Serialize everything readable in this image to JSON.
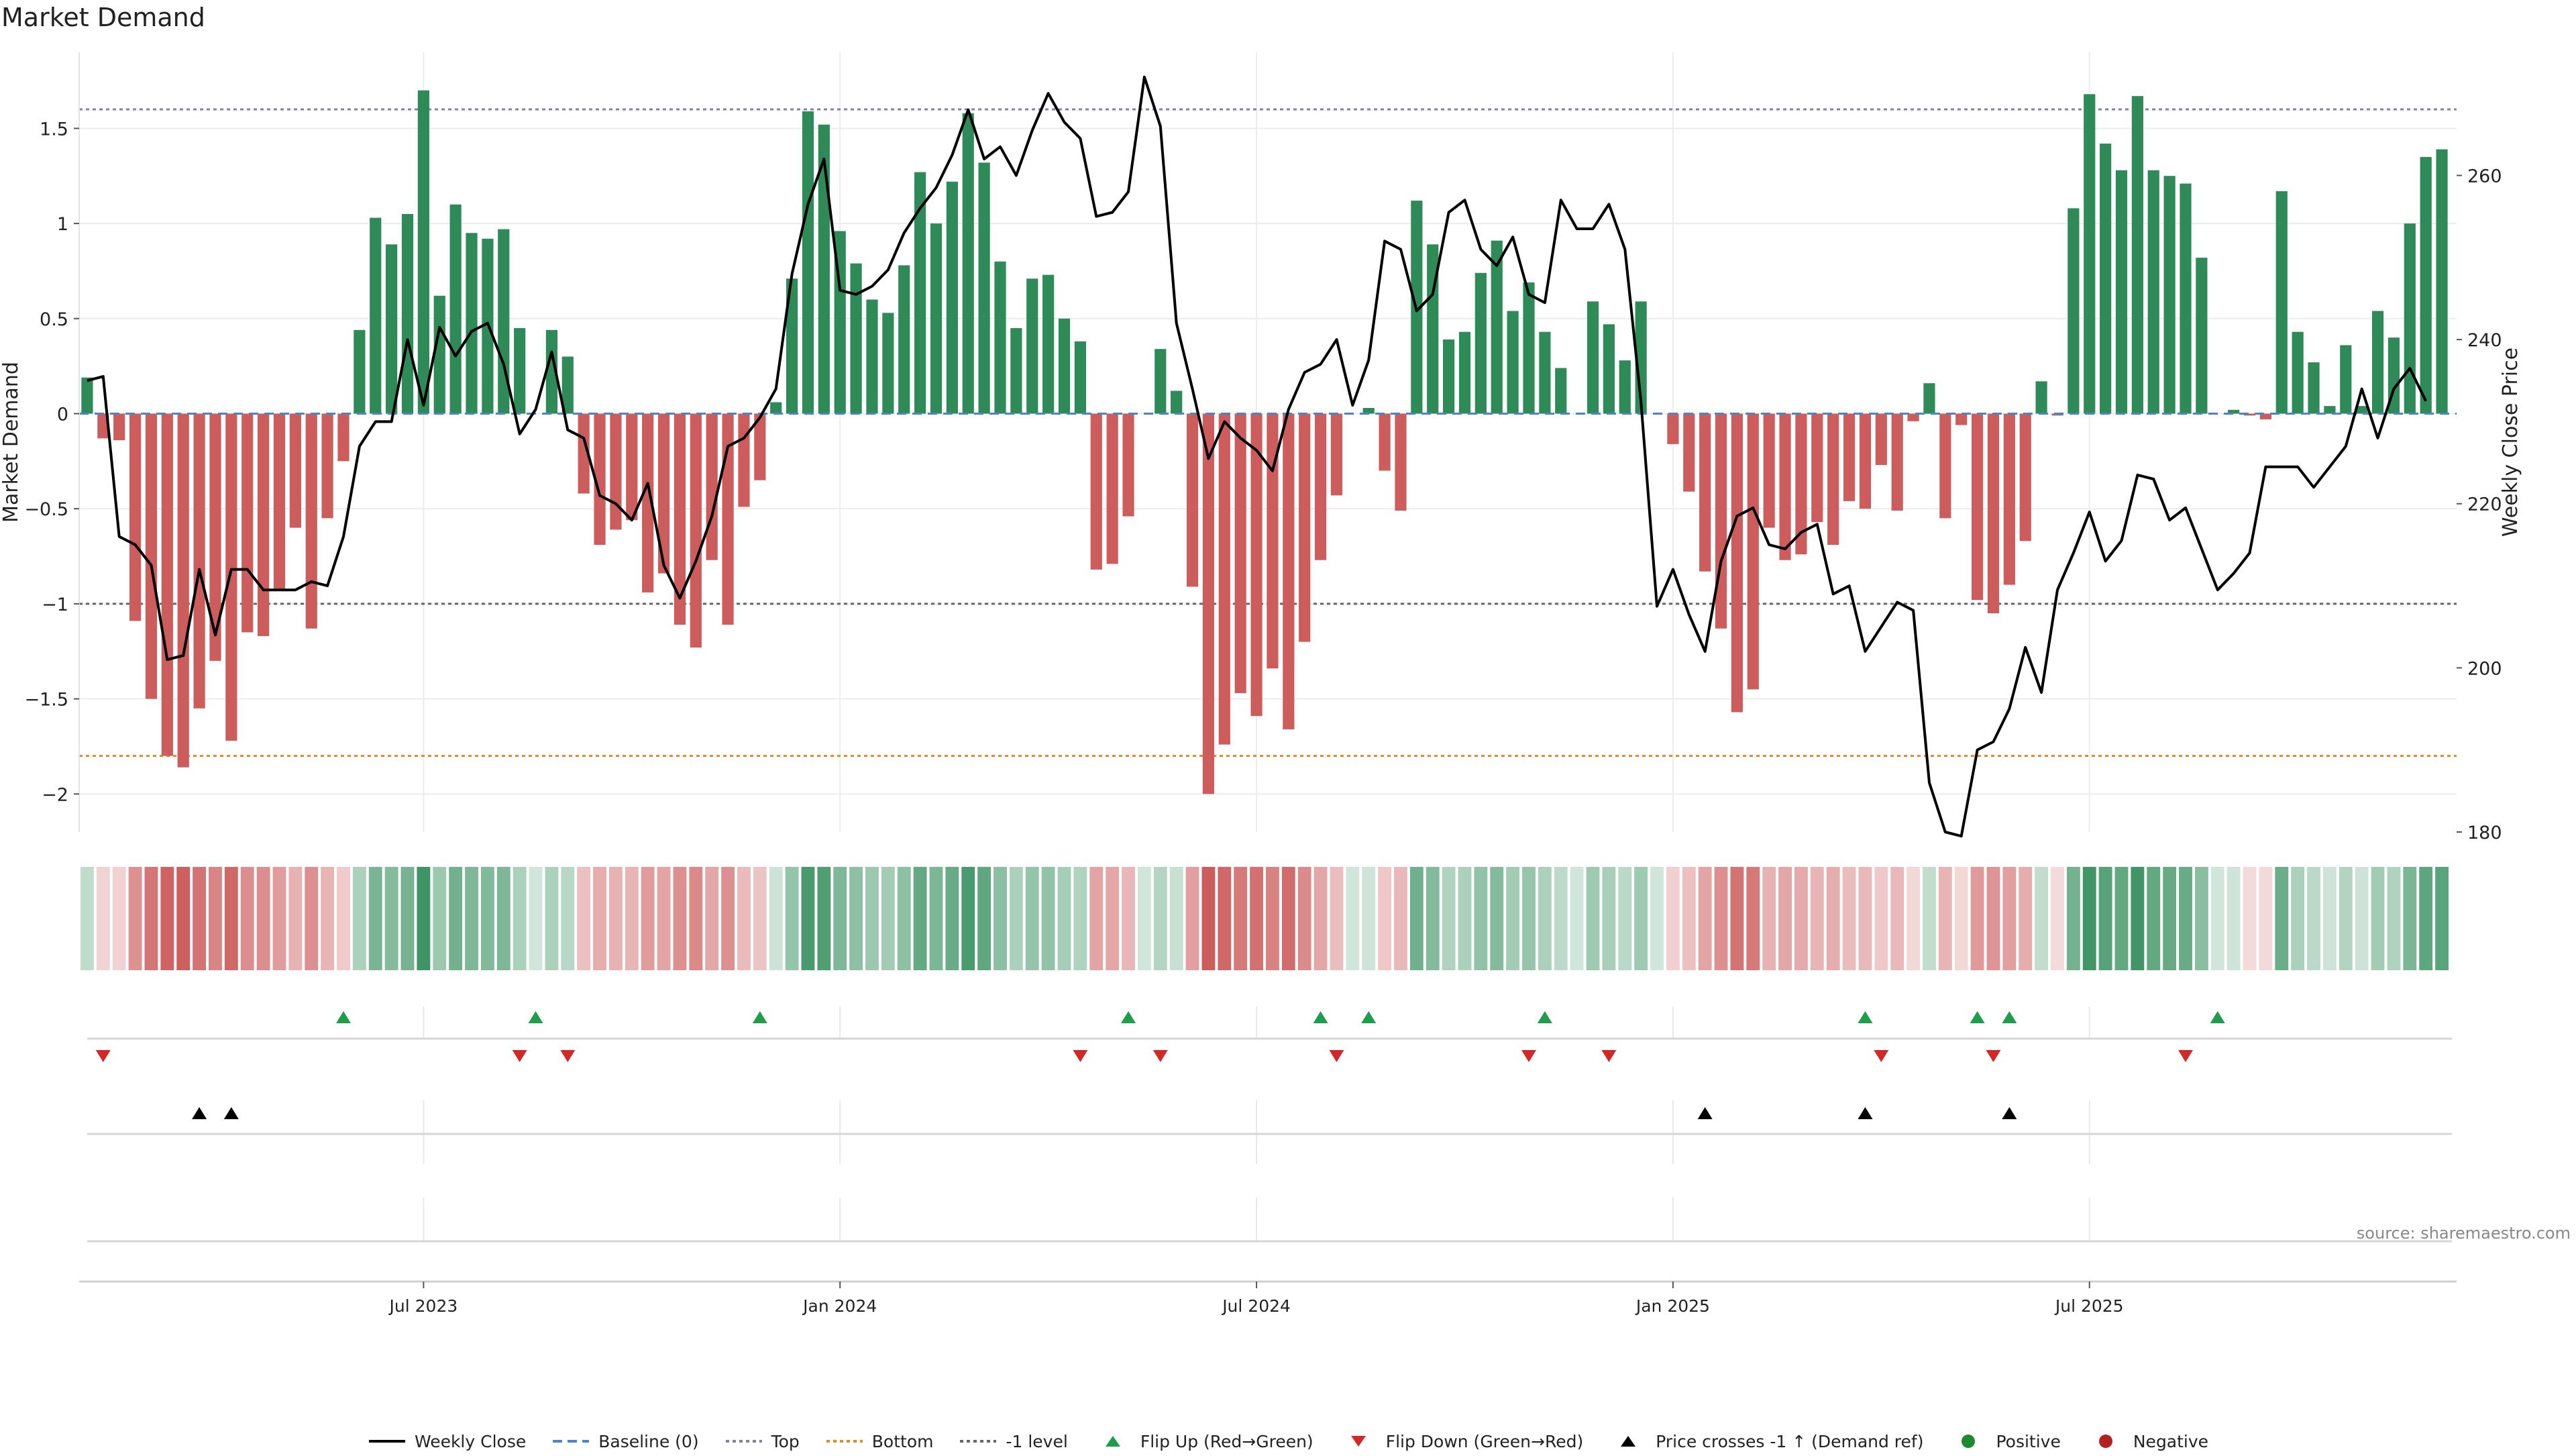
{
  "title": "Market Demand",
  "source": "source: sharemaestro.com",
  "colors": {
    "positive": "#2e8b57",
    "negative": "#cd5c5c",
    "price": "#000000",
    "baseline": "#4a86c5",
    "top": "#8a7fa0",
    "bottom": "#e08a2b",
    "minus1": "#666666",
    "flip_up": "#1e9e4a",
    "flip_down": "#d62728",
    "cross": "#000000",
    "dot_positive": "#1e8a2e",
    "dot_negative": "#b22222"
  },
  "legend": [
    {
      "key": "price",
      "label": "Weekly Close"
    },
    {
      "key": "baseline",
      "label": "Baseline (0)"
    },
    {
      "key": "top",
      "label": "Top"
    },
    {
      "key": "bottom",
      "label": "Bottom"
    },
    {
      "key": "minus1",
      "label": "-1 level"
    },
    {
      "key": "flip_up",
      "label": "Flip Up (Red→Green)"
    },
    {
      "key": "flip_down",
      "label": "Flip Down (Green→Red)"
    },
    {
      "key": "cross",
      "label": "Price crosses -1 ↑ (Demand ref)"
    },
    {
      "key": "dot_positive",
      "label": "Positive"
    },
    {
      "key": "dot_negative",
      "label": "Negative"
    }
  ],
  "chart_data": {
    "type": "bar",
    "ylabel": "Market Demand",
    "y2label": "Weekly Close Price",
    "ylim": [
      -2.2,
      1.9
    ],
    "y_ticks": [
      1.5,
      1,
      0.5,
      0,
      -0.5,
      -1,
      -1.5,
      -2
    ],
    "y_tick_labels": [
      "1.5",
      "1",
      "0.5",
      "0",
      "−0.5",
      "−1",
      "−1.5",
      "−2"
    ],
    "y2lim": [
      180,
      275
    ],
    "y2_ticks": [
      180,
      200,
      220,
      240,
      260
    ],
    "reference_lines": {
      "top": 1.6,
      "bottom": -1.8,
      "minus1": -1.0,
      "baseline": 0
    },
    "x_tick_labels": [
      "Jul 2023",
      "Jan 2024",
      "Jul 2024",
      "Jan 2025",
      "Jul 2025"
    ],
    "x_tick_weeks": [
      21.5,
      47.5,
      73.5,
      99.5,
      125.5
    ],
    "demand": [
      0.19,
      -0.13,
      -0.14,
      -1.09,
      -1.5,
      -1.8,
      -1.86,
      -1.55,
      -1.3,
      -1.72,
      -1.15,
      -1.17,
      -0.93,
      -0.6,
      -1.13,
      -0.55,
      -0.25,
      0.44,
      1.03,
      0.89,
      1.05,
      1.7,
      0.62,
      1.1,
      0.95,
      0.92,
      0.97,
      0.45,
      0.0,
      0.44,
      0.3,
      -0.42,
      -0.69,
      -0.61,
      -0.56,
      -0.94,
      -0.84,
      -1.11,
      -1.23,
      -0.77,
      -1.11,
      -0.49,
      -0.35,
      0.06,
      0.71,
      1.59,
      1.52,
      0.96,
      0.79,
      0.6,
      0.53,
      0.78,
      1.27,
      1.0,
      1.22,
      1.58,
      1.32,
      0.8,
      0.45,
      0.71,
      0.73,
      0.5,
      0.38,
      -0.82,
      -0.79,
      -0.54,
      0.0,
      0.34,
      0.12,
      -0.91,
      -2.0,
      -1.74,
      -1.47,
      -1.59,
      -1.34,
      -1.66,
      -1.2,
      -0.77,
      -0.43,
      0.0,
      0.03,
      -0.3,
      -0.51,
      1.12,
      0.89,
      0.39,
      0.43,
      0.74,
      0.91,
      0.54,
      0.69,
      0.43,
      0.24,
      0.0,
      0.59,
      0.47,
      0.28,
      0.59,
      0.0,
      -0.16,
      -0.41,
      -0.83,
      -1.13,
      -1.57,
      -1.45,
      -0.6,
      -0.77,
      -0.74,
      -0.57,
      -0.69,
      -0.46,
      -0.5,
      -0.27,
      -0.51,
      -0.04,
      0.16,
      -0.55,
      -0.06,
      -0.98,
      -1.05,
      -0.9,
      -0.67,
      0.17,
      -0.01,
      1.08,
      1.68,
      1.42,
      1.28,
      1.67,
      1.28,
      1.25,
      1.21,
      0.82,
      0.0,
      0.02,
      -0.01,
      -0.03,
      1.17,
      0.43,
      0.27,
      0.04,
      0.36,
      0.04,
      0.54,
      0.4,
      1.0,
      1.35,
      1.39
    ],
    "price": [
      235,
      235.5,
      216,
      215,
      212.5,
      201,
      201.5,
      212,
      204,
      212,
      212,
      209.5,
      209.5,
      209.5,
      210.5,
      210,
      216,
      227,
      230,
      230,
      240,
      232,
      241.5,
      238,
      241,
      242,
      237,
      228.5,
      231.5,
      238.5,
      229,
      228,
      221,
      220,
      218,
      222.5,
      212.5,
      208.5,
      213,
      218.5,
      227,
      228,
      230.5,
      234,
      248,
      256.5,
      262,
      246,
      245.5,
      246.5,
      248.5,
      253,
      256,
      258.5,
      262.5,
      268,
      262,
      263.5,
      260,
      265.5,
      270,
      266.5,
      264.5,
      255,
      255.5,
      258,
      272,
      266,
      242,
      234,
      225.5,
      230,
      228,
      226.5,
      224,
      231.5,
      236,
      237,
      240,
      232,
      237.5,
      252,
      251,
      243.5,
      245.5,
      255.5,
      257,
      251,
      249,
      252.5,
      245.5,
      244.5,
      257,
      253.5,
      253.5,
      256.5,
      251,
      232.5,
      207.5,
      212,
      206.5,
      202,
      213,
      218.5,
      219.5,
      215,
      214.5,
      216.5,
      217.5,
      209,
      210,
      202,
      205,
      208,
      207,
      186,
      180,
      179.5,
      190,
      191,
      195,
      202.5,
      197,
      209.5,
      214,
      219,
      213,
      215.5,
      223.5,
      223,
      218,
      219.5,
      214.5,
      209.5,
      211.5,
      214,
      224.5,
      224.5,
      224.5,
      222,
      224.5,
      227,
      234,
      228,
      234,
      236.5,
      232.5
    ],
    "flip_up_weeks": [
      16,
      28,
      42,
      65,
      77,
      80,
      91,
      111,
      118,
      120,
      133
    ],
    "flip_down_weeks": [
      1,
      27,
      30,
      62,
      67,
      78,
      90,
      95,
      112,
      119,
      131
    ],
    "cross_up_weeks": [
      7,
      9,
      101,
      111,
      120
    ]
  }
}
